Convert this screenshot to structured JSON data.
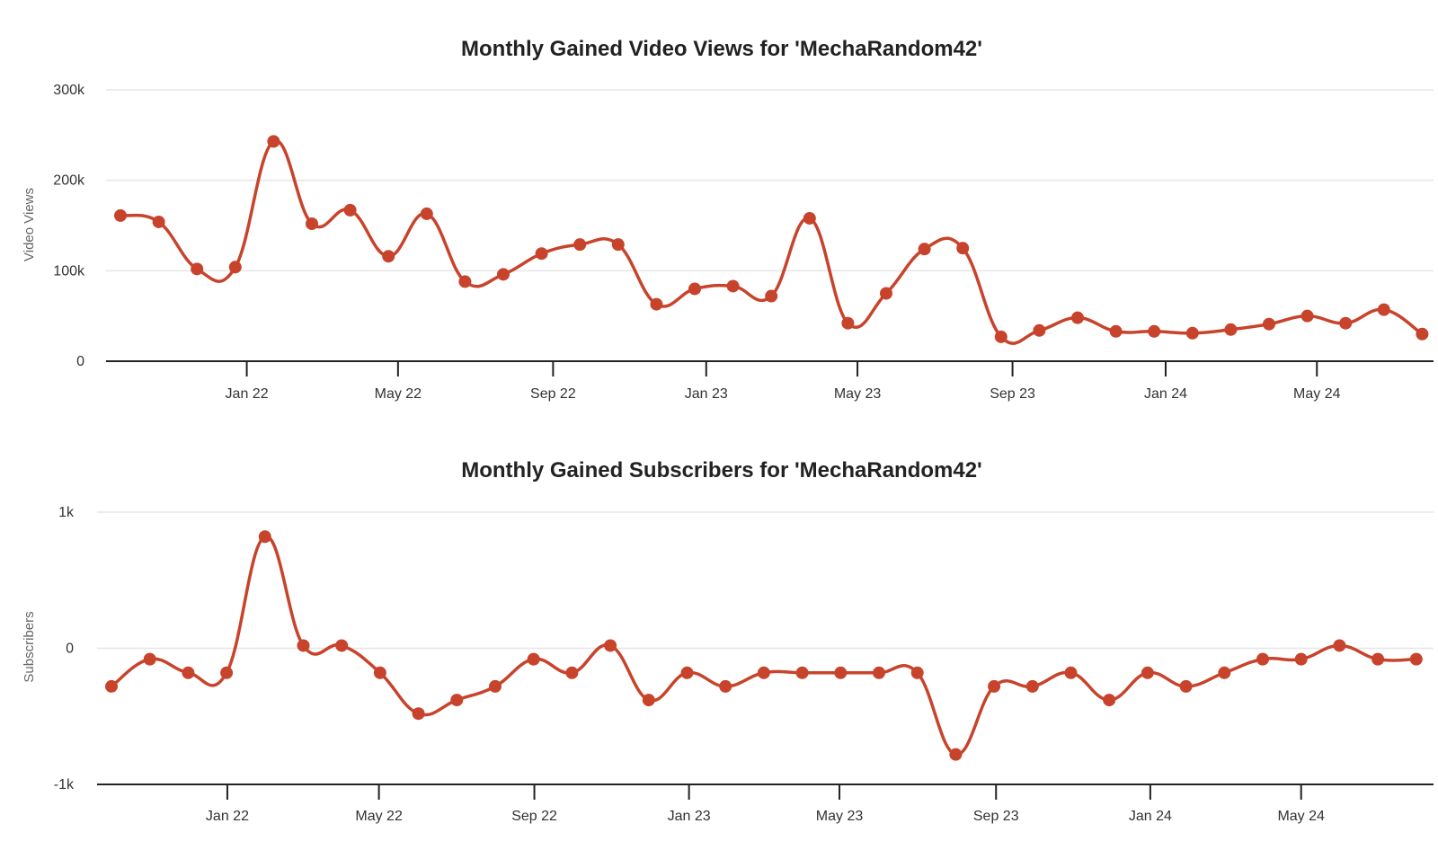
{
  "colors": {
    "series": "#c8432b",
    "grid": "#e6e6e6",
    "axis": "#222222",
    "text": "#333333"
  },
  "chart_data": [
    {
      "type": "line",
      "title": "Monthly Gained Video Views for 'MechaRandom42'",
      "xlabel": "",
      "ylabel": "Video Views",
      "ylim": [
        0,
        300000
      ],
      "yticks": [
        0,
        100000,
        200000,
        300000
      ],
      "ytick_labels": [
        "0",
        "100k",
        "200k",
        "300k"
      ],
      "xticks": [
        {
          "label": "Jan 22",
          "month_index": 3.3
        },
        {
          "label": "May 22",
          "month_index": 7.25
        },
        {
          "label": "Sep 22",
          "month_index": 11.3
        },
        {
          "label": "Jan 23",
          "month_index": 15.3
        },
        {
          "label": "May 23",
          "month_index": 19.25
        },
        {
          "label": "Sep 23",
          "month_index": 23.3
        },
        {
          "label": "Jan 24",
          "month_index": 27.3
        },
        {
          "label": "May 24",
          "month_index": 31.25
        }
      ],
      "series": [
        {
          "name": "Video Views",
          "values": [
            161000,
            154000,
            102000,
            104000,
            243000,
            152000,
            167000,
            116000,
            163000,
            88000,
            96000,
            119000,
            129000,
            129000,
            63000,
            80000,
            83000,
            72000,
            158000,
            42000,
            75000,
            124000,
            125000,
            27000,
            34000,
            48000,
            33000,
            33000,
            31000,
            35000,
            41000,
            50000,
            42000,
            57000,
            30000
          ]
        }
      ]
    },
    {
      "type": "line",
      "title": "Monthly Gained Subscribers for 'MechaRandom42'",
      "xlabel": "",
      "ylabel": "Subscribers",
      "ylim": [
        -1000,
        1000
      ],
      "yticks": [
        -1000,
        0,
        1000
      ],
      "ytick_labels": [
        "-1k",
        "0",
        "1k"
      ],
      "xticks": [
        {
          "label": "Jan 22",
          "month_index": 3.02
        },
        {
          "label": "May 22",
          "month_index": 6.97
        },
        {
          "label": "Sep 22",
          "month_index": 11.02
        },
        {
          "label": "Jan 23",
          "month_index": 15.05
        },
        {
          "label": "May 23",
          "month_index": 18.97
        },
        {
          "label": "Sep 23",
          "month_index": 23.05
        },
        {
          "label": "Jan 24",
          "month_index": 27.07
        },
        {
          "label": "May 24",
          "month_index": 31.0
        }
      ],
      "series": [
        {
          "name": "Subscribers",
          "values": [
            -280,
            -80,
            -180,
            -180,
            820,
            20,
            20,
            -180,
            -480,
            -380,
            -280,
            -80,
            -180,
            20,
            -380,
            -180,
            -280,
            -180,
            -180,
            -180,
            -180,
            -180,
            -780,
            -280,
            -280,
            -180,
            -380,
            -180,
            -280,
            -180,
            -80,
            -80,
            20,
            -80,
            -80
          ]
        }
      ]
    }
  ]
}
